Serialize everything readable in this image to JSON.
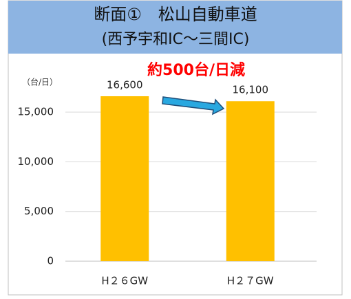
{
  "chart_data": {
    "type": "bar",
    "title": "断面①　松山自動車道",
    "subtitle": "(西予宇和IC〜三間IC)",
    "unit_label": "（台/日）",
    "annotation": "約500台/日減",
    "categories": [
      "H２６GW",
      "H２７GW"
    ],
    "values": [
      16600,
      16100
    ],
    "value_labels": [
      "16,600",
      "16,100"
    ],
    "color": "#ffc000",
    "ylim": [
      0,
      17500
    ],
    "yticks": [
      0,
      {
        "value": 5000,
        "label": "5,000"
      },
      {
        "value": 10000,
        "label": "10,000"
      },
      {
        "value": 15000,
        "label": "15,000"
      }
    ],
    "grid": true
  }
}
